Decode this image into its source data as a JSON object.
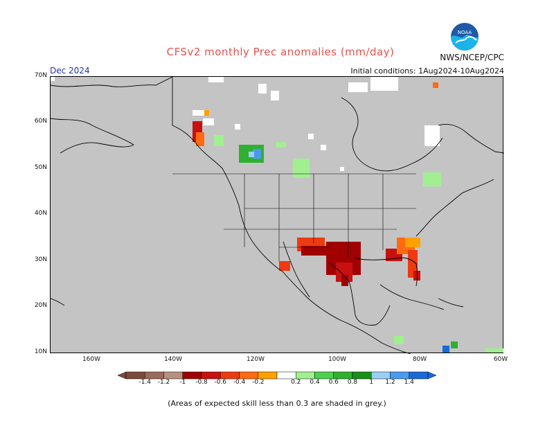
{
  "header": {
    "title": "CFSv2 monthly Prec anomalies (mm/day)",
    "month": "Dec 2024",
    "org": "NWS/NCEP/CPC",
    "init": "Initial conditions: 1Aug2024-10Aug2024",
    "logo_text": "NOAA"
  },
  "axes": {
    "lat_labels": [
      "70N",
      "60N",
      "50N",
      "40N",
      "30N",
      "20N",
      "10N"
    ],
    "lon_labels": [
      "160W",
      "140W",
      "120W",
      "100W",
      "80W",
      "60W"
    ]
  },
  "colorbar": {
    "ticks": [
      "-1.4",
      "-1.2",
      "-1",
      "-0.8",
      "-0.6",
      "-0.4",
      "-0.2",
      "0.2",
      "0.4",
      "0.6",
      "0.8",
      "1",
      "1.2",
      "1.4"
    ],
    "colors": [
      "#7a4a3a",
      "#9a6a5a",
      "#b89080",
      "#a00000",
      "#c81010",
      "#ee3a10",
      "#ff6a10",
      "#ffa000",
      "#ffffff",
      "#a0f090",
      "#50d050",
      "#30b030",
      "#189018",
      "#9ad0f8",
      "#4a9af0",
      "#1a6ad8"
    ]
  },
  "footer": "(Areas of expected skill less than 0.3 are shaded in grey.)"
}
